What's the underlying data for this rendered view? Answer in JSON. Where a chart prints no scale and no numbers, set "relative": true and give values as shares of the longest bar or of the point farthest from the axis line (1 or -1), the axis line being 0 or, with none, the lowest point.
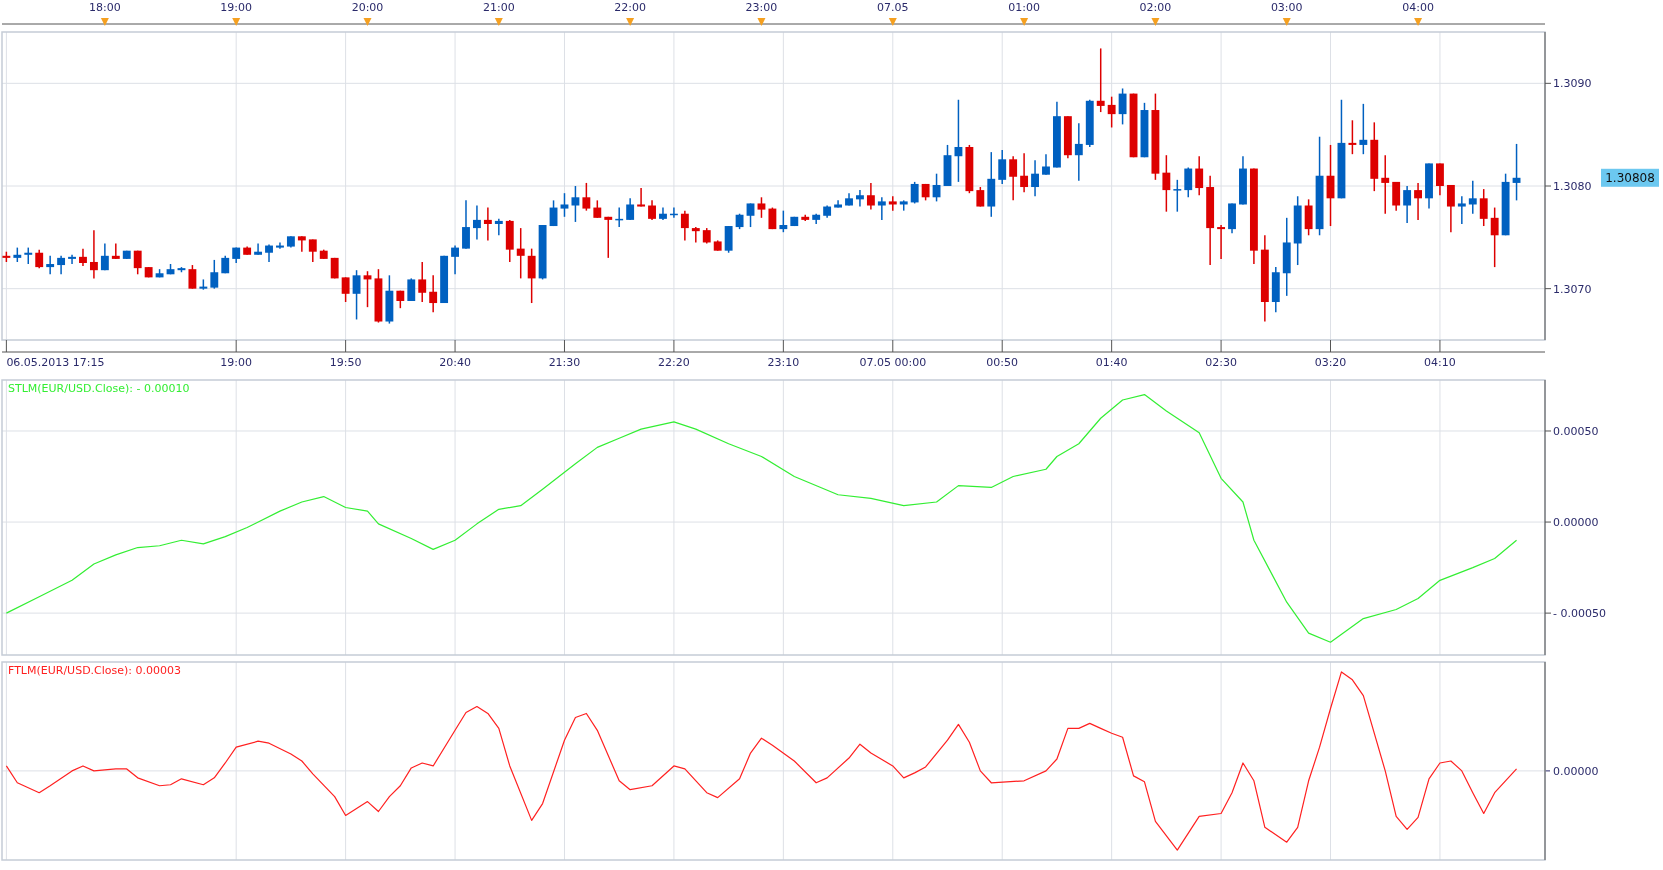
{
  "chart_data": [
    {
      "type": "candlestick",
      "x": [
        "2013-05-06T17:15",
        "2013-05-06T17:20",
        "2013-05-06T17:25",
        "2013-05-06T17:30",
        "2013-05-06T17:35",
        "2013-05-06T17:40",
        "2013-05-06T17:45",
        "2013-05-06T17:50",
        "2013-05-06T17:55",
        "2013-05-06T18:00",
        "2013-05-06T18:05",
        "2013-05-06T18:10",
        "2013-05-06T18:15",
        "2013-05-06T18:20",
        "2013-05-06T18:25",
        "2013-05-06T18:30",
        "2013-05-06T18:35",
        "2013-05-06T18:40",
        "2013-05-06T18:45",
        "2013-05-06T18:50",
        "2013-05-06T18:55",
        "2013-05-06T19:00",
        "2013-05-06T19:05",
        "2013-05-06T19:10",
        "2013-05-06T19:15",
        "2013-05-06T19:20",
        "2013-05-06T19:25",
        "2013-05-06T19:30",
        "2013-05-06T19:35",
        "2013-05-06T19:40",
        "2013-05-06T19:45",
        "2013-05-06T19:50",
        "2013-05-06T19:55",
        "2013-05-06T20:00",
        "2013-05-06T20:05",
        "2013-05-06T20:10",
        "2013-05-06T20:15",
        "2013-05-06T20:20",
        "2013-05-06T20:25",
        "2013-05-06T20:30",
        "2013-05-06T20:35",
        "2013-05-06T20:40",
        "2013-05-06T20:45",
        "2013-05-06T20:50",
        "2013-05-06T20:55",
        "2013-05-06T21:00",
        "2013-05-06T21:05",
        "2013-05-06T21:10",
        "2013-05-06T21:15",
        "2013-05-06T21:20",
        "2013-05-06T21:25",
        "2013-05-06T21:30",
        "2013-05-06T21:35",
        "2013-05-06T21:40",
        "2013-05-06T21:45",
        "2013-05-06T21:50",
        "2013-05-06T21:55",
        "2013-05-06T22:00",
        "2013-05-06T22:05",
        "2013-05-06T22:10",
        "2013-05-06T22:15",
        "2013-05-06T22:20",
        "2013-05-06T22:25",
        "2013-05-06T22:30",
        "2013-05-06T22:35",
        "2013-05-06T22:40",
        "2013-05-06T22:45",
        "2013-05-06T22:50",
        "2013-05-06T22:55",
        "2013-05-06T23:00",
        "2013-05-06T23:05",
        "2013-05-06T23:10",
        "2013-05-06T23:15",
        "2013-05-06T23:20",
        "2013-05-06T23:25",
        "2013-05-06T23:30",
        "2013-05-06T23:35",
        "2013-05-06T23:40",
        "2013-05-06T23:45",
        "2013-05-06T23:50",
        "2013-05-06T23:55",
        "2013-05-07T00:00",
        "2013-05-07T00:05",
        "2013-05-07T00:10",
        "2013-05-07T00:15",
        "2013-05-07T00:20",
        "2013-05-07T00:25",
        "2013-05-07T00:30",
        "2013-05-07T00:35",
        "2013-05-07T00:40",
        "2013-05-07T00:45",
        "2013-05-07T00:50",
        "2013-05-07T00:55",
        "2013-05-07T01:00",
        "2013-05-07T01:05",
        "2013-05-07T01:10",
        "2013-05-07T01:15",
        "2013-05-07T01:20",
        "2013-05-07T01:25",
        "2013-05-07T01:30",
        "2013-05-07T01:35",
        "2013-05-07T01:40",
        "2013-05-07T01:45",
        "2013-05-07T01:50",
        "2013-05-07T01:55",
        "2013-05-07T02:00",
        "2013-05-07T02:05",
        "2013-05-07T02:10",
        "2013-05-07T02:15",
        "2013-05-07T02:20",
        "2013-05-07T02:25",
        "2013-05-07T02:30",
        "2013-05-07T02:35",
        "2013-05-07T02:40",
        "2013-05-07T02:45",
        "2013-05-07T02:50",
        "2013-05-07T02:55",
        "2013-05-07T03:00",
        "2013-05-07T03:05",
        "2013-05-07T03:10",
        "2013-05-07T03:15",
        "2013-05-07T03:20",
        "2013-05-07T03:25",
        "2013-05-07T03:30",
        "2013-05-07T03:35",
        "2013-05-07T03:40",
        "2013-05-07T03:45",
        "2013-05-07T03:50",
        "2013-05-07T03:55",
        "2013-05-07T04:00",
        "2013-05-07T04:05",
        "2013-05-07T04:10",
        "2013-05-07T04:15",
        "2013-05-07T04:20",
        "2013-05-07T04:25",
        "2013-05-07T04:30",
        "2013-05-07T04:35",
        "2013-05-07T04:40",
        "2013-05-07T04:45"
      ],
      "ohlc": [
        [
          1.30732,
          1.30736,
          1.30726,
          1.3073
        ],
        [
          1.3073,
          1.3074,
          1.30726,
          1.30733
        ],
        [
          1.30733,
          1.3074,
          1.30724,
          1.30735
        ],
        [
          1.30735,
          1.30738,
          1.3072,
          1.30721
        ],
        [
          1.30721,
          1.30732,
          1.30714,
          1.30724
        ],
        [
          1.30723,
          1.30732,
          1.30714,
          1.3073
        ],
        [
          1.30729,
          1.30733,
          1.30724,
          1.30731
        ],
        [
          1.30731,
          1.30739,
          1.30722,
          1.30725
        ],
        [
          1.30726,
          1.30757,
          1.3071,
          1.30718
        ],
        [
          1.30718,
          1.30744,
          1.30718,
          1.30732
        ],
        [
          1.30732,
          1.30744,
          1.30729,
          1.30729
        ],
        [
          1.30729,
          1.30737,
          1.30729,
          1.30737
        ],
        [
          1.30737,
          1.30737,
          1.30714,
          1.3072
        ],
        [
          1.30721,
          1.30721,
          1.30711,
          1.30711
        ],
        [
          1.30711,
          1.30719,
          1.30711,
          1.30715
        ],
        [
          1.30714,
          1.30724,
          1.30714,
          1.30719
        ],
        [
          1.30718,
          1.30721,
          1.30716,
          1.3072
        ],
        [
          1.30719,
          1.30723,
          1.307,
          1.307
        ],
        [
          1.307,
          1.30709,
          1.30699,
          1.30702
        ],
        [
          1.30701,
          1.30728,
          1.307,
          1.30716
        ],
        [
          1.30715,
          1.30732,
          1.30715,
          1.3073
        ],
        [
          1.30729,
          1.3074,
          1.30725,
          1.3074
        ],
        [
          1.3074,
          1.30741,
          1.30733,
          1.30733
        ],
        [
          1.30733,
          1.30744,
          1.30733,
          1.30736
        ],
        [
          1.30735,
          1.30743,
          1.30726,
          1.30742
        ],
        [
          1.3074,
          1.30745,
          1.30739,
          1.30742
        ],
        [
          1.30741,
          1.30751,
          1.3074,
          1.30751
        ],
        [
          1.30751,
          1.30751,
          1.30736,
          1.30747
        ],
        [
          1.30748,
          1.30748,
          1.30726,
          1.30736
        ],
        [
          1.30737,
          1.30738,
          1.30729,
          1.30729
        ],
        [
          1.3073,
          1.3073,
          1.3071,
          1.3071
        ],
        [
          1.30711,
          1.30711,
          1.30687,
          1.30695
        ],
        [
          1.30695,
          1.30718,
          1.3067,
          1.30713
        ],
        [
          1.30713,
          1.30717,
          1.30682,
          1.30709
        ],
        [
          1.3071,
          1.30719,
          1.30667,
          1.30668
        ],
        [
          1.30668,
          1.30713,
          1.30666,
          1.30698
        ],
        [
          1.30698,
          1.30698,
          1.30681,
          1.30688
        ],
        [
          1.30688,
          1.3071,
          1.30688,
          1.30709
        ],
        [
          1.30709,
          1.30726,
          1.30687,
          1.30696
        ],
        [
          1.30697,
          1.30713,
          1.30677,
          1.30686
        ],
        [
          1.30686,
          1.30732,
          1.30686,
          1.30732
        ],
        [
          1.30731,
          1.30742,
          1.30714,
          1.3074
        ],
        [
          1.30739,
          1.30786,
          1.30739,
          1.3076
        ],
        [
          1.30759,
          1.30781,
          1.30748,
          1.30767
        ],
        [
          1.30767,
          1.30779,
          1.30747,
          1.30763
        ],
        [
          1.30763,
          1.30768,
          1.30752,
          1.30766
        ],
        [
          1.30766,
          1.30767,
          1.30726,
          1.30738
        ],
        [
          1.30739,
          1.30759,
          1.3071,
          1.30732
        ],
        [
          1.30732,
          1.30739,
          1.30686,
          1.3071
        ],
        [
          1.3071,
          1.30762,
          1.30709,
          1.30762
        ],
        [
          1.30761,
          1.30786,
          1.30761,
          1.30779
        ],
        [
          1.30778,
          1.30793,
          1.3077,
          1.30782
        ],
        [
          1.30781,
          1.308,
          1.30765,
          1.30789
        ],
        [
          1.30789,
          1.30803,
          1.30776,
          1.30778
        ],
        [
          1.30779,
          1.30786,
          1.30769,
          1.30769
        ],
        [
          1.3077,
          1.3077,
          1.3073,
          1.30767
        ],
        [
          1.30767,
          1.30779,
          1.3076,
          1.30768
        ],
        [
          1.30767,
          1.30788,
          1.30767,
          1.30782
        ],
        [
          1.30782,
          1.30798,
          1.3078,
          1.3078
        ],
        [
          1.30781,
          1.30786,
          1.30767,
          1.30768
        ],
        [
          1.30768,
          1.30779,
          1.30767,
          1.30773
        ],
        [
          1.30772,
          1.30779,
          1.30769,
          1.30773
        ],
        [
          1.30773,
          1.30776,
          1.30747,
          1.30759
        ],
        [
          1.30759,
          1.3076,
          1.30745,
          1.30756
        ],
        [
          1.30757,
          1.30759,
          1.30744,
          1.30745
        ],
        [
          1.30746,
          1.30747,
          1.30737,
          1.30737
        ],
        [
          1.30737,
          1.30761,
          1.30735,
          1.30761
        ],
        [
          1.3076,
          1.30773,
          1.30758,
          1.30772
        ],
        [
          1.30771,
          1.30783,
          1.3076,
          1.30783
        ],
        [
          1.30783,
          1.30789,
          1.30769,
          1.30777
        ],
        [
          1.30778,
          1.30779,
          1.30758,
          1.30758
        ],
        [
          1.30758,
          1.30776,
          1.30755,
          1.30762
        ],
        [
          1.30761,
          1.3077,
          1.30761,
          1.3077
        ],
        [
          1.3077,
          1.30772,
          1.30766,
          1.30767
        ],
        [
          1.30767,
          1.30773,
          1.30763,
          1.30772
        ],
        [
          1.30771,
          1.30781,
          1.30769,
          1.3078
        ],
        [
          1.30779,
          1.30786,
          1.30779,
          1.30782
        ],
        [
          1.30781,
          1.30793,
          1.30781,
          1.30788
        ],
        [
          1.30787,
          1.30796,
          1.3078,
          1.30791
        ],
        [
          1.30791,
          1.30803,
          1.30777,
          1.30781
        ],
        [
          1.30781,
          1.30789,
          1.30767,
          1.30785
        ],
        [
          1.30785,
          1.3079,
          1.30776,
          1.30782
        ],
        [
          1.30782,
          1.30786,
          1.30776,
          1.30785
        ],
        [
          1.30784,
          1.30804,
          1.30783,
          1.30802
        ],
        [
          1.30802,
          1.30802,
          1.30786,
          1.30789
        ],
        [
          1.30789,
          1.30812,
          1.30785,
          1.30801
        ],
        [
          1.308,
          1.3084,
          1.308,
          1.3083
        ],
        [
          1.30829,
          1.30884,
          1.30804,
          1.30838
        ],
        [
          1.30838,
          1.3084,
          1.30793,
          1.30795
        ],
        [
          1.30796,
          1.30799,
          1.3078,
          1.3078
        ],
        [
          1.3078,
          1.30833,
          1.3077,
          1.30807
        ],
        [
          1.30806,
          1.30835,
          1.30802,
          1.30826
        ],
        [
          1.30826,
          1.30829,
          1.30786,
          1.30809
        ],
        [
          1.3081,
          1.30832,
          1.30794,
          1.30799
        ],
        [
          1.30799,
          1.30825,
          1.3079,
          1.30812
        ],
        [
          1.30811,
          1.30831,
          1.30811,
          1.30819
        ],
        [
          1.30818,
          1.30882,
          1.30818,
          1.30868
        ],
        [
          1.30868,
          1.30868,
          1.30827,
          1.3083
        ],
        [
          1.3083,
          1.30861,
          1.30805,
          1.30841
        ],
        [
          1.3084,
          1.30884,
          1.30838,
          1.30883
        ],
        [
          1.30883,
          1.30934,
          1.30872,
          1.30878
        ],
        [
          1.30879,
          1.30887,
          1.30857,
          1.3087
        ],
        [
          1.3087,
          1.30895,
          1.3086,
          1.3089
        ],
        [
          1.3089,
          1.3089,
          1.30828,
          1.30828
        ],
        [
          1.30828,
          1.30881,
          1.30828,
          1.30874
        ],
        [
          1.30874,
          1.3089,
          1.30806,
          1.30812
        ],
        [
          1.30813,
          1.3083,
          1.30775,
          1.30796
        ],
        [
          1.30796,
          1.30806,
          1.30775,
          1.30797
        ],
        [
          1.30796,
          1.30818,
          1.30789,
          1.30817
        ],
        [
          1.30817,
          1.30829,
          1.30791,
          1.30798
        ],
        [
          1.30799,
          1.3081,
          1.30723,
          1.30759
        ],
        [
          1.3076,
          1.30762,
          1.30729,
          1.30758
        ],
        [
          1.30758,
          1.30783,
          1.30754,
          1.30783
        ],
        [
          1.30782,
          1.30829,
          1.30782,
          1.30817
        ],
        [
          1.30817,
          1.30817,
          1.30724,
          1.30737
        ],
        [
          1.30738,
          1.30752,
          1.30668,
          1.30687
        ],
        [
          1.30687,
          1.30721,
          1.30677,
          1.30716
        ],
        [
          1.30715,
          1.30769,
          1.30693,
          1.30745
        ],
        [
          1.30744,
          1.3079,
          1.30723,
          1.30781
        ],
        [
          1.30781,
          1.30787,
          1.30752,
          1.30758
        ],
        [
          1.30758,
          1.30848,
          1.30752,
          1.3081
        ],
        [
          1.3081,
          1.3084,
          1.30761,
          1.30788
        ],
        [
          1.30788,
          1.30884,
          1.30788,
          1.30842
        ],
        [
          1.30842,
          1.30864,
          1.30831,
          1.3084
        ],
        [
          1.3084,
          1.3088,
          1.30831,
          1.30845
        ],
        [
          1.30845,
          1.30862,
          1.30795,
          1.30807
        ],
        [
          1.30808,
          1.3083,
          1.30773,
          1.30803
        ],
        [
          1.30804,
          1.30804,
          1.30776,
          1.30781
        ],
        [
          1.30781,
          1.308,
          1.30764,
          1.30796
        ],
        [
          1.30796,
          1.30803,
          1.30767,
          1.30788
        ],
        [
          1.30788,
          1.30822,
          1.30778,
          1.30822
        ],
        [
          1.30822,
          1.30822,
          1.30791,
          1.308
        ],
        [
          1.30801,
          1.30801,
          1.30755,
          1.3078
        ],
        [
          1.3078,
          1.3079,
          1.30763,
          1.30783
        ],
        [
          1.30782,
          1.30805,
          1.30773,
          1.30788
        ],
        [
          1.30788,
          1.30797,
          1.30761,
          1.30768
        ],
        [
          1.30769,
          1.30779,
          1.30721,
          1.30752
        ],
        [
          1.30752,
          1.30812,
          1.30752,
          1.30804
        ],
        [
          1.30803,
          1.30841,
          1.30786,
          1.30808
        ]
      ],
      "xlim": [
        "2013-05-06T17:13",
        "2013-05-07T04:58"
      ],
      "xticks": [
        {
          "value": "2013-05-06T17:15",
          "label": "06.05.2013 17:15"
        },
        {
          "value": "2013-05-06T19:00",
          "label": "19:00"
        },
        {
          "value": "2013-05-06T19:50",
          "label": "19:50"
        },
        {
          "value": "2013-05-06T20:40",
          "label": "20:40"
        },
        {
          "value": "2013-05-06T21:30",
          "label": "21:30"
        },
        {
          "value": "2013-05-06T22:20",
          "label": "22:20"
        },
        {
          "value": "2013-05-06T23:10",
          "label": "23:10"
        },
        {
          "value": "2013-05-07T00:00",
          "label": "07.05 00:00"
        },
        {
          "value": "2013-05-07T00:50",
          "label": "00:50"
        },
        {
          "value": "2013-05-07T01:40",
          "label": "01:40"
        },
        {
          "value": "2013-05-07T02:30",
          "label": "02:30"
        },
        {
          "value": "2013-05-07T03:20",
          "label": "03:20"
        },
        {
          "value": "2013-05-07T04:10",
          "label": "04:10"
        }
      ],
      "x2lim": [
        "2013-05-06T17:13",
        "2013-05-07T04:58"
      ],
      "x2ticks": [
        {
          "value": "2013-05-06T18:00",
          "label": "18:00"
        },
        {
          "value": "2013-05-06T19:00",
          "label": "19:00"
        },
        {
          "value": "2013-05-06T20:00",
          "label": "20:00"
        },
        {
          "value": "2013-05-06T21:00",
          "label": "21:00"
        },
        {
          "value": "2013-05-06T22:00",
          "label": "22:00"
        },
        {
          "value": "2013-05-06T23:00",
          "label": "23:00"
        },
        {
          "value": "2013-05-07T00:00",
          "label": "07.05"
        },
        {
          "value": "2013-05-07T01:00",
          "label": "01:00"
        },
        {
          "value": "2013-05-07T02:00",
          "label": "02:00"
        },
        {
          "value": "2013-05-07T03:00",
          "label": "03:00"
        },
        {
          "value": "2013-05-07T04:00",
          "label": "04:00"
        }
      ],
      "ylim": [
        1.3065,
        1.3095
      ],
      "yticks": [
        {
          "value": 1.307,
          "label": "1.3070"
        },
        {
          "value": 1.308,
          "label": "1.3080"
        },
        {
          "value": 1.309,
          "label": "1.3090"
        }
      ],
      "grid": true,
      "annotations": [
        "1.30808"
      ]
    },
    {
      "type": "line",
      "title": "STLM(EUR/USD.Close): - 0.00010",
      "series": [
        {
          "color": "#33ee33",
          "x": [
            "2013-05-06T17:15",
            "2013-05-06T17:30",
            "2013-05-06T17:45",
            "2013-05-06T17:55",
            "2013-05-06T18:05",
            "2013-05-06T18:15",
            "2013-05-06T18:25",
            "2013-05-06T18:35",
            "2013-05-06T18:45",
            "2013-05-06T18:55",
            "2013-05-06T19:05",
            "2013-05-06T19:20",
            "2013-05-06T19:30",
            "2013-05-06T19:40",
            "2013-05-06T19:50",
            "2013-05-06T20:00",
            "2013-05-06T20:05",
            "2013-05-06T20:20",
            "2013-05-06T20:30",
            "2013-05-06T20:40",
            "2013-05-06T20:50",
            "2013-05-06T21:00",
            "2013-05-06T21:10",
            "2013-05-06T21:20",
            "2013-05-06T21:35",
            "2013-05-06T21:45",
            "2013-05-06T21:55",
            "2013-05-06T22:05",
            "2013-05-06T22:20",
            "2013-05-06T22:30",
            "2013-05-06T22:45",
            "2013-05-06T23:00",
            "2013-05-06T23:15",
            "2013-05-06T23:35",
            "2013-05-06T23:50",
            "2013-05-07T00:05",
            "2013-05-07T00:20",
            "2013-05-07T00:30",
            "2013-05-07T00:45",
            "2013-05-07T00:55",
            "2013-05-07T01:10",
            "2013-05-07T01:15",
            "2013-05-07T01:25",
            "2013-05-07T01:35",
            "2013-05-07T01:45",
            "2013-05-07T01:55",
            "2013-05-07T02:05",
            "2013-05-07T02:20",
            "2013-05-07T02:30",
            "2013-05-07T02:40",
            "2013-05-07T02:45",
            "2013-05-07T03:00",
            "2013-05-07T03:10",
            "2013-05-07T03:20",
            "2013-05-07T03:35",
            "2013-05-07T03:50",
            "2013-05-07T04:00",
            "2013-05-07T04:10",
            "2013-05-07T04:25",
            "2013-05-07T04:35",
            "2013-05-07T04:45"
          ],
          "values": [
            -0.0005,
            -0.00041,
            -0.00032,
            -0.00023,
            -0.00018,
            -0.00014,
            -0.00013,
            -0.0001,
            -0.00012,
            -8e-05,
            -3e-05,
            6e-05,
            0.00011,
            0.00014,
            8e-05,
            6e-05,
            -1e-05,
            -9e-05,
            -0.00015,
            -0.0001,
            -1e-05,
            7e-05,
            9e-05,
            0.00018,
            0.00032,
            0.00041,
            0.00046,
            0.00051,
            0.00055,
            0.00051,
            0.00043,
            0.00036,
            0.00025,
            0.00015,
            0.00013,
            9e-05,
            0.00011,
            0.0002,
            0.00019,
            0.00025,
            0.00029,
            0.00036,
            0.00043,
            0.00057,
            0.00067,
            0.0007,
            0.00061,
            0.00049,
            0.00024,
            0.00011,
            -0.0001,
            -0.00044,
            -0.00061,
            -0.00066,
            -0.00053,
            -0.00048,
            -0.00042,
            -0.00032,
            -0.00025,
            -0.0002,
            -0.0001
          ]
        }
      ],
      "xlim": [
        "2013-05-06T17:13",
        "2013-05-07T04:58"
      ],
      "xticks": [
        "2013-05-06T17:15",
        "2013-05-06T19:00",
        "2013-05-06T19:50",
        "2013-05-06T20:40",
        "2013-05-06T21:30",
        "2013-05-06T22:20",
        "2013-05-06T23:10",
        "2013-05-07T00:00",
        "2013-05-07T00:50",
        "2013-05-07T01:40",
        "2013-05-07T02:30",
        "2013-05-07T03:20",
        "2013-05-07T04:10"
      ],
      "ylim": [
        -0.00073,
        0.00078
      ],
      "yticks": [
        {
          "value": 0.0005,
          "label": "0.00050"
        },
        {
          "value": 0,
          "label": "0.00000"
        },
        {
          "value": -0.0005,
          "label": "- 0.00050"
        }
      ],
      "grid": true,
      "tick_labels": "y"
    },
    {
      "type": "line",
      "title": "FTLM(EUR/USD.Close): 0.00003",
      "relative": true,
      "series": [
        {
          "color": "#ff2020",
          "x": [
            "2013-05-06T17:15",
            "2013-05-06T17:20",
            "2013-05-06T17:30",
            "2013-05-06T17:35",
            "2013-05-06T17:45",
            "2013-05-06T17:50",
            "2013-05-06T17:55",
            "2013-05-06T18:05",
            "2013-05-06T18:10",
            "2013-05-06T18:15",
            "2013-05-06T18:25",
            "2013-05-06T18:30",
            "2013-05-06T18:35",
            "2013-05-06T18:45",
            "2013-05-06T18:50",
            "2013-05-06T18:55",
            "2013-05-06T19:00",
            "2013-05-06T19:10",
            "2013-05-06T19:15",
            "2013-05-06T19:25",
            "2013-05-06T19:30",
            "2013-05-06T19:35",
            "2013-05-06T19:45",
            "2013-05-06T19:50",
            "2013-05-06T20:00",
            "2013-05-06T20:05",
            "2013-05-06T20:10",
            "2013-05-06T20:15",
            "2013-05-06T20:20",
            "2013-05-06T20:25",
            "2013-05-06T20:30",
            "2013-05-06T20:40",
            "2013-05-06T20:45",
            "2013-05-06T20:50",
            "2013-05-06T20:55",
            "2013-05-06T21:00",
            "2013-05-06T21:05",
            "2013-05-06T21:15",
            "2013-05-06T21:20",
            "2013-05-06T21:30",
            "2013-05-06T21:35",
            "2013-05-06T21:40",
            "2013-05-06T21:45",
            "2013-05-06T21:55",
            "2013-05-06T22:00",
            "2013-05-06T22:10",
            "2013-05-06T22:20",
            "2013-05-06T22:25",
            "2013-05-06T22:35",
            "2013-05-06T22:40",
            "2013-05-06T22:50",
            "2013-05-06T22:55",
            "2013-05-06T23:00",
            "2013-05-06T23:05",
            "2013-05-06T23:15",
            "2013-05-06T23:25",
            "2013-05-06T23:30",
            "2013-05-06T23:40",
            "2013-05-06T23:45",
            "2013-05-06T23:50",
            "2013-05-07T00:00",
            "2013-05-07T00:05",
            "2013-05-07T00:10",
            "2013-05-07T00:15",
            "2013-05-07T00:25",
            "2013-05-07T00:30",
            "2013-05-07T00:35",
            "2013-05-07T00:40",
            "2013-05-07T00:45",
            "2013-05-07T01:00",
            "2013-05-07T01:10",
            "2013-05-07T01:15",
            "2013-05-07T01:20",
            "2013-05-07T01:25",
            "2013-05-07T01:30",
            "2013-05-07T01:35",
            "2013-05-07T01:40",
            "2013-05-07T01:45",
            "2013-05-07T01:50",
            "2013-05-07T01:55",
            "2013-05-07T02:00",
            "2013-05-07T02:10",
            "2013-05-07T02:20",
            "2013-05-07T02:30",
            "2013-05-07T02:35",
            "2013-05-07T02:40",
            "2013-05-07T02:45",
            "2013-05-07T02:50",
            "2013-05-07T03:00",
            "2013-05-07T03:05",
            "2013-05-07T03:10",
            "2013-05-07T03:15",
            "2013-05-07T03:20",
            "2013-05-07T03:25",
            "2013-05-07T03:30",
            "2013-05-07T03:35",
            "2013-05-07T03:45",
            "2013-05-07T03:50",
            "2013-05-07T03:55",
            "2013-05-07T04:00",
            "2013-05-07T04:05",
            "2013-05-07T04:10",
            "2013-05-07T04:15",
            "2013-05-07T04:20",
            "2013-05-07T04:25",
            "2013-05-07T04:30",
            "2013-05-07T04:35",
            "2013-05-07T04:45"
          ],
          "values": [
            0.05,
            -0.12,
            -0.22,
            -0.15,
            0,
            0.05,
            0,
            0.02,
            0.02,
            -0.07,
            -0.15,
            -0.14,
            -0.08,
            -0.14,
            -0.07,
            0.08,
            0.24,
            0.3,
            0.28,
            0.17,
            0.1,
            -0.03,
            -0.26,
            -0.45,
            -0.31,
            -0.41,
            -0.26,
            -0.15,
            0.03,
            0.08,
            0.05,
            0.41,
            0.59,
            0.65,
            0.58,
            0.43,
            0.05,
            -0.5,
            -0.33,
            0.31,
            0.54,
            0.58,
            0.41,
            -0.1,
            -0.19,
            -0.15,
            0.05,
            0.02,
            -0.22,
            -0.27,
            -0.08,
            0.18,
            0.33,
            0.26,
            0.1,
            -0.12,
            -0.07,
            0.13,
            0.27,
            0.18,
            0.05,
            -0.07,
            -0.02,
            0.04,
            0.31,
            0.47,
            0.29,
            0,
            -0.12,
            -0.1,
            0,
            0.12,
            0.43,
            0.43,
            0.48,
            0.43,
            0.38,
            0.34,
            -0.05,
            -0.11,
            -0.51,
            -0.8,
            -0.46,
            -0.43,
            -0.22,
            0.08,
            -0.1,
            -0.57,
            -0.72,
            -0.57,
            -0.1,
            0.24,
            0.63,
            1,
            0.92,
            0.76,
            0,
            -0.46,
            -0.59,
            -0.47,
            -0.08,
            0.08,
            0.1,
            0,
            -0.22,
            -0.43,
            -0.22,
            0.02
          ]
        }
      ],
      "xlim": [
        "2013-05-06T17:13",
        "2013-05-07T04:58"
      ],
      "xticks": [
        "2013-05-06T17:15",
        "2013-05-06T19:00",
        "2013-05-06T19:50",
        "2013-05-06T20:40",
        "2013-05-06T21:30",
        "2013-05-06T22:20",
        "2013-05-06T23:10",
        "2013-05-07T00:00",
        "2013-05-07T00:50",
        "2013-05-07T01:40",
        "2013-05-07T02:30",
        "2013-05-07T03:20",
        "2013-05-07T04:10"
      ],
      "ref_lines": [
        {
          "axis": "y",
          "value": 0,
          "label": "0.00000"
        }
      ],
      "grid": "x",
      "tick_labels": false
    }
  ]
}
